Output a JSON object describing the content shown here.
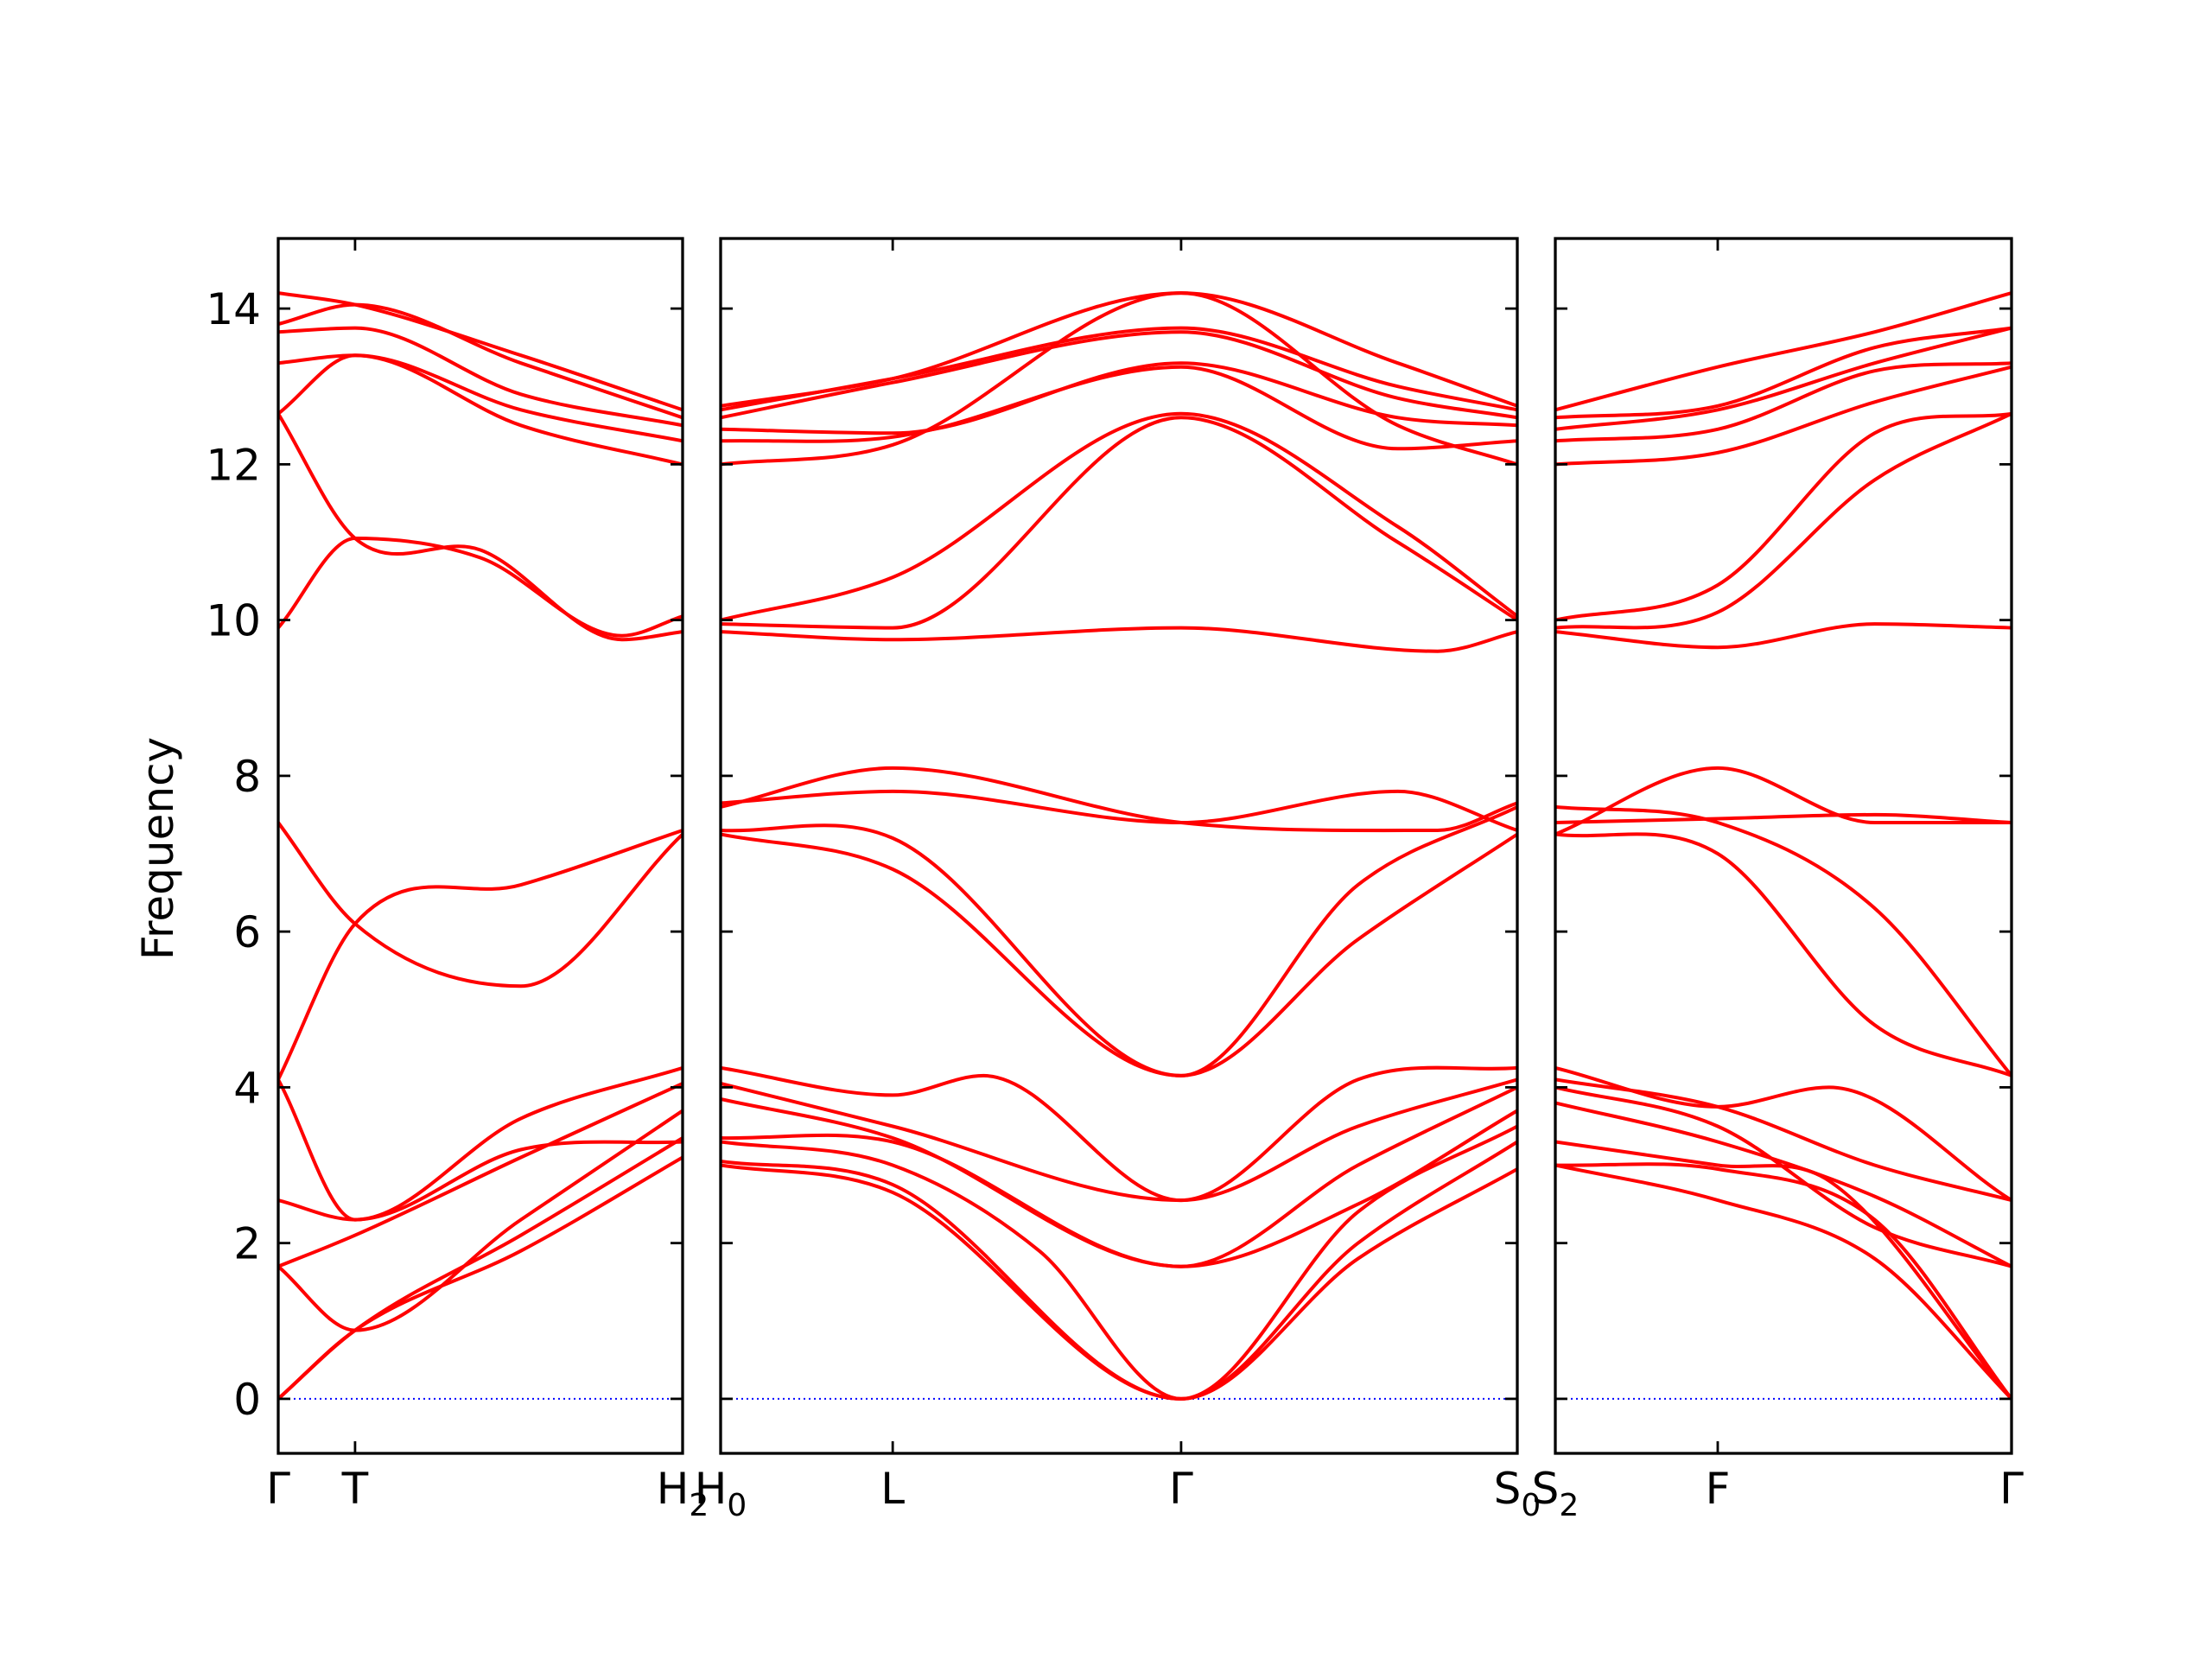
{
  "chart_data": {
    "type": "line",
    "ylabel": "Frequency",
    "ylim": [
      -0.7,
      14.9
    ],
    "yticks": [
      0,
      2,
      4,
      6,
      8,
      10,
      12,
      14
    ],
    "line_color": "#ff0000",
    "zero_line_color": "#0000ff",
    "grid": false,
    "panels": [
      {
        "x_domain": [
          0,
          1
        ],
        "ticks": [
          {
            "x": 0,
            "label": "Γ"
          },
          {
            "x": 0.19,
            "label": "T"
          },
          {
            "x": 1,
            "label": "H",
            "sub": "2"
          }
        ],
        "series": [
          {
            "x": [
              0,
              0.19,
              0.6,
              1
            ],
            "values": [
              0,
              0.88,
              1.9,
              3.1
            ]
          },
          {
            "x": [
              0,
              0.19,
              0.6,
              1
            ],
            "values": [
              0,
              0.88,
              2.1,
              3.35
            ]
          },
          {
            "x": [
              0,
              0.19,
              0.6,
              1
            ],
            "values": [
              1.7,
              0.88,
              2.3,
              3.7
            ]
          },
          {
            "x": [
              0,
              0.19,
              0.6,
              1
            ],
            "values": [
              1.7,
              2.1,
              3.1,
              4.05
            ]
          },
          {
            "x": [
              0,
              0.19,
              0.6,
              1
            ],
            "values": [
              2.55,
              2.3,
              3.6,
              4.25
            ]
          },
          {
            "x": [
              0,
              0.19,
              0.6,
              1
            ],
            "values": [
              4.1,
              2.3,
              3.2,
              3.3
            ]
          },
          {
            "x": [
              0,
              0.19,
              0.6,
              1
            ],
            "values": [
              4.1,
              6.1,
              6.6,
              7.3
            ]
          },
          {
            "x": [
              0,
              0.19,
              0.6,
              1
            ],
            "values": [
              7.4,
              6.1,
              5.3,
              7.25
            ]
          },
          {
            "x": [
              0,
              0.19,
              0.5,
              0.85,
              1
            ],
            "values": [
              12.65,
              11.05,
              10.9,
              9.75,
              9.85
            ]
          },
          {
            "x": [
              0,
              0.19,
              0.5,
              0.85,
              1
            ],
            "values": [
              9.9,
              11.05,
              10.8,
              9.8,
              10.05
            ]
          },
          {
            "x": [
              0,
              0.19,
              0.6,
              1
            ],
            "values": [
              12.65,
              13.4,
              12.5,
              12.0
            ]
          },
          {
            "x": [
              0,
              0.19,
              0.6,
              1
            ],
            "values": [
              13.3,
              13.4,
              12.7,
              12.3
            ]
          },
          {
            "x": [
              0,
              0.19,
              0.6,
              1
            ],
            "values": [
              13.7,
              13.75,
              12.9,
              12.5
            ]
          },
          {
            "x": [
              0,
              0.19,
              0.6,
              1
            ],
            "values": [
              13.8,
              14.05,
              13.3,
              12.6
            ]
          },
          {
            "x": [
              0,
              0.19,
              0.6,
              1
            ],
            "values": [
              14.2,
              14.05,
              13.4,
              12.7
            ]
          }
        ]
      },
      {
        "x_domain": [
          0,
          1
        ],
        "ticks": [
          {
            "x": 0,
            "label": "H",
            "sub": "0"
          },
          {
            "x": 0.216,
            "label": "L"
          },
          {
            "x": 0.578,
            "label": "Γ"
          },
          {
            "x": 1,
            "label": "S",
            "sub": "0"
          }
        ],
        "series": [
          {
            "x": [
              0,
              0.216,
              0.578,
              0.8,
              1
            ],
            "values": [
              3.0,
              2.65,
              0.0,
              1.8,
              2.95
            ]
          },
          {
            "x": [
              0,
              0.216,
              0.578,
              0.8,
              1
            ],
            "values": [
              3.05,
              2.75,
              0.0,
              2.0,
              3.3
            ]
          },
          {
            "x": [
              0,
              0.216,
              0.4,
              0.578,
              0.8,
              1
            ],
            "values": [
              3.3,
              3.0,
              1.9,
              0.0,
              2.4,
              3.5
            ]
          },
          {
            "x": [
              0,
              0.216,
              0.578,
              0.8,
              1
            ],
            "values": [
              3.35,
              3.3,
              1.7,
              2.5,
              3.7
            ]
          },
          {
            "x": [
              0,
              0.216,
              0.578,
              0.8,
              1
            ],
            "values": [
              3.85,
              3.35,
              1.7,
              3.0,
              4.0
            ]
          },
          {
            "x": [
              0,
              0.216,
              0.578,
              0.8,
              1
            ],
            "values": [
              4.05,
              3.5,
              2.55,
              3.5,
              4.1
            ]
          },
          {
            "x": [
              0,
              0.216,
              0.33,
              0.578,
              0.8,
              1
            ],
            "values": [
              4.25,
              3.9,
              4.15,
              2.55,
              4.1,
              4.25
            ]
          },
          {
            "x": [
              0,
              0.216,
              0.578,
              0.8,
              1
            ],
            "values": [
              7.25,
              6.8,
              4.15,
              5.9,
              7.25
            ]
          },
          {
            "x": [
              0,
              0.216,
              0.578,
              0.8,
              1
            ],
            "values": [
              7.3,
              7.2,
              4.15,
              6.6,
              7.6
            ]
          },
          {
            "x": [
              0,
              0.216,
              0.578,
              0.85,
              1
            ],
            "values": [
              7.65,
              7.8,
              7.4,
              7.8,
              7.3
            ]
          },
          {
            "x": [
              0,
              0.216,
              0.578,
              0.9,
              1
            ],
            "values": [
              7.6,
              8.1,
              7.4,
              7.3,
              7.65
            ]
          },
          {
            "x": [
              0,
              0.216,
              0.578,
              0.9,
              1
            ],
            "values": [
              9.85,
              9.75,
              9.9,
              9.6,
              9.85
            ]
          },
          {
            "x": [
              0,
              0.216,
              0.578,
              0.85,
              1
            ],
            "values": [
              9.95,
              9.9,
              12.6,
              11.0,
              10.0
            ]
          },
          {
            "x": [
              0,
              0.216,
              0.578,
              0.85,
              1
            ],
            "values": [
              10.0,
              10.55,
              12.65,
              11.2,
              10.05
            ]
          },
          {
            "x": [
              0,
              0.216,
              0.578,
              0.85,
              1
            ],
            "values": [
              12.0,
              12.25,
              14.2,
              12.5,
              12.0
            ]
          },
          {
            "x": [
              0,
              0.216,
              0.578,
              0.85,
              1
            ],
            "values": [
              12.3,
              12.35,
              13.25,
              12.2,
              12.3
            ]
          },
          {
            "x": [
              0,
              0.216,
              0.578,
              0.85,
              1
            ],
            "values": [
              12.45,
              12.4,
              13.3,
              12.6,
              12.5
            ]
          },
          {
            "x": [
              0,
              0.216,
              0.578,
              0.85,
              1
            ],
            "values": [
              12.6,
              13.05,
              13.7,
              12.85,
              12.6
            ]
          },
          {
            "x": [
              0,
              0.216,
              0.578,
              0.85,
              1
            ],
            "values": [
              12.7,
              13.1,
              13.75,
              13.0,
              12.7
            ]
          },
          {
            "x": [
              0,
              0.216,
              0.578,
              0.85,
              1
            ],
            "values": [
              12.75,
              13.1,
              14.2,
              13.3,
              12.75
            ]
          }
        ]
      },
      {
        "x_domain": [
          0,
          1
        ],
        "ticks": [
          {
            "x": 0,
            "label": "S",
            "sub": "2"
          },
          {
            "x": 0.356,
            "label": "F"
          },
          {
            "x": 1,
            "label": "Γ"
          }
        ],
        "series": [
          {
            "x": [
              0,
              0.356,
              0.7,
              1
            ],
            "values": [
              3.0,
              2.95,
              2.3,
              0.0
            ]
          },
          {
            "x": [
              0,
              0.356,
              0.7,
              1
            ],
            "values": [
              3.0,
              2.55,
              1.8,
              0.0
            ]
          },
          {
            "x": [
              0,
              0.356,
              0.6,
              1
            ],
            "values": [
              3.3,
              3.0,
              2.8,
              0.0
            ]
          },
          {
            "x": [
              0,
              0.356,
              0.7,
              1
            ],
            "values": [
              3.8,
              3.3,
              2.6,
              1.7
            ]
          },
          {
            "x": [
              0,
              0.356,
              0.7,
              1
            ],
            "values": [
              4.0,
              3.5,
              2.2,
              1.7
            ]
          },
          {
            "x": [
              0,
              0.356,
              0.7,
              1
            ],
            "values": [
              4.1,
              3.75,
              3.0,
              2.55
            ]
          },
          {
            "x": [
              0,
              0.356,
              0.6,
              1
            ],
            "values": [
              4.25,
              3.75,
              4.0,
              2.55
            ]
          },
          {
            "x": [
              0,
              0.356,
              0.7,
              1
            ],
            "values": [
              7.25,
              7.0,
              4.8,
              4.15
            ]
          },
          {
            "x": [
              0,
              0.356,
              0.7,
              1
            ],
            "values": [
              7.6,
              7.4,
              6.3,
              4.15
            ]
          },
          {
            "x": [
              0,
              0.356,
              0.7,
              1
            ],
            "values": [
              7.4,
              7.45,
              7.5,
              7.4
            ]
          },
          {
            "x": [
              0,
              0.356,
              0.7,
              1
            ],
            "values": [
              7.25,
              8.1,
              7.4,
              7.4
            ]
          },
          {
            "x": [
              0,
              0.356,
              0.7,
              1
            ],
            "values": [
              9.85,
              9.65,
              9.95,
              9.9
            ]
          },
          {
            "x": [
              0,
              0.356,
              0.7,
              1
            ],
            "values": [
              9.9,
              10.1,
              11.8,
              12.65
            ]
          },
          {
            "x": [
              0,
              0.356,
              0.7,
              1
            ],
            "values": [
              10.0,
              10.45,
              12.4,
              12.65
            ]
          },
          {
            "x": [
              0,
              0.356,
              0.7,
              1
            ],
            "values": [
              12.0,
              12.15,
              12.8,
              13.25
            ]
          },
          {
            "x": [
              0,
              0.356,
              0.7,
              1
            ],
            "values": [
              12.3,
              12.45,
              13.2,
              13.3
            ]
          },
          {
            "x": [
              0,
              0.356,
              0.7,
              1
            ],
            "values": [
              12.45,
              12.7,
              13.3,
              13.75
            ]
          },
          {
            "x": [
              0,
              0.356,
              0.7,
              1
            ],
            "values": [
              12.6,
              12.75,
              13.5,
              13.75
            ]
          },
          {
            "x": [
              0,
              0.356,
              0.7,
              1
            ],
            "values": [
              12.7,
              13.25,
              13.7,
              14.2
            ]
          }
        ]
      }
    ]
  }
}
